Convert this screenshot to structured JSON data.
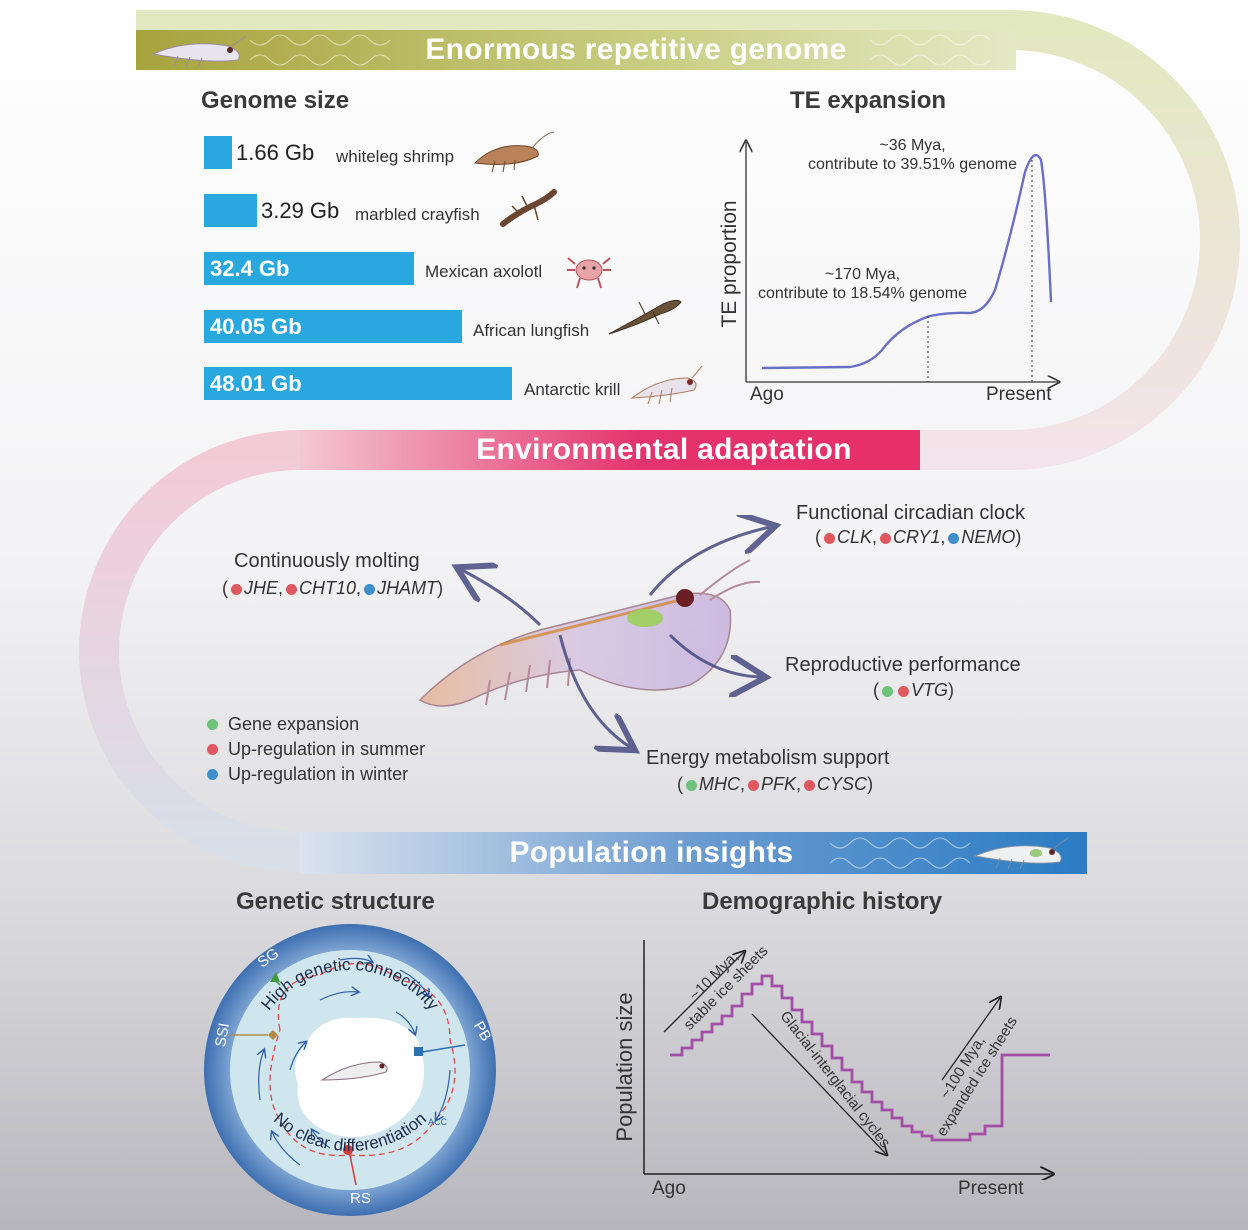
{
  "banners": {
    "genome": "Enormous repetitive genome",
    "environment": "Environmental adaptation",
    "population": "Population insights"
  },
  "colors": {
    "genome_banner": "#a9a94a",
    "environment_banner": "#e5316f",
    "population_banner": "#2f7fc2",
    "bar": "#29a8e0",
    "te_line": "#6a6fc6",
    "demo_line": "#a24ea6",
    "gene_expansion": "#6fc27a",
    "up_summer": "#e0585f",
    "up_winter": "#3f8fcc"
  },
  "genome_size": {
    "title": "Genome size",
    "items": [
      {
        "value": "1.66 Gb",
        "gb": 1.66,
        "species": "whiteleg shrimp"
      },
      {
        "value": "3.29 Gb",
        "gb": 3.29,
        "species": "marbled crayfish"
      },
      {
        "value": "32.4 Gb",
        "gb": 32.4,
        "species": "Mexican axolotl"
      },
      {
        "value": "40.05 Gb",
        "gb": 40.05,
        "species": "African lungfish"
      },
      {
        "value": "48.01 Gb",
        "gb": 48.01,
        "species": "Antarctic krill"
      }
    ]
  },
  "te_expansion": {
    "title": "TE expansion",
    "ylabel": "TE proportion",
    "x_start": "Ago",
    "x_end": "Present",
    "peak1": "~170 Mya,\ncontribute to 18.54% genome",
    "peak2": "~36 Mya,\ncontribute to 39.51% genome"
  },
  "adaptation": {
    "molting": {
      "label": "Continuously molting",
      "genes": [
        {
          "name": "JHE",
          "color": "up_summer"
        },
        {
          "name": "CHT10",
          "color": "up_summer"
        },
        {
          "name": "JHAMT",
          "color": "up_winter"
        }
      ]
    },
    "circadian": {
      "label": "Functional circadian clock",
      "genes": [
        {
          "name": "CLK",
          "color": "up_summer"
        },
        {
          "name": "CRY1",
          "color": "up_summer"
        },
        {
          "name": "NEMO",
          "color": "up_winter"
        }
      ]
    },
    "reproductive": {
      "label": "Reproductive performance",
      "genes": [
        {
          "name": "VTG"
        }
      ]
    },
    "energy": {
      "label": "Energy metabolism support",
      "genes": [
        {
          "name": "MHC"
        },
        {
          "name": "PFK"
        },
        {
          "name": "CYSC"
        }
      ]
    },
    "legend": [
      "Gene expansion",
      "Up-regulation in summer",
      "Up-regulation in winter"
    ]
  },
  "genetic_structure": {
    "title": "Genetic structure",
    "top_text": "High genetic connectivity",
    "bottom_text": "No clear differentiation",
    "sites": [
      "SG",
      "SSI",
      "PB",
      "RS"
    ],
    "current": "ACC"
  },
  "demographic": {
    "title": "Demographic history",
    "ylabel": "Population size",
    "x_start": "Ago",
    "x_end": "Present",
    "ann1": "~10 Mya,\nstable ice sheets",
    "ann2": "Glacial-interglacial cycles",
    "ann3": "~100 Mya,\nexpanded ice sheets"
  }
}
